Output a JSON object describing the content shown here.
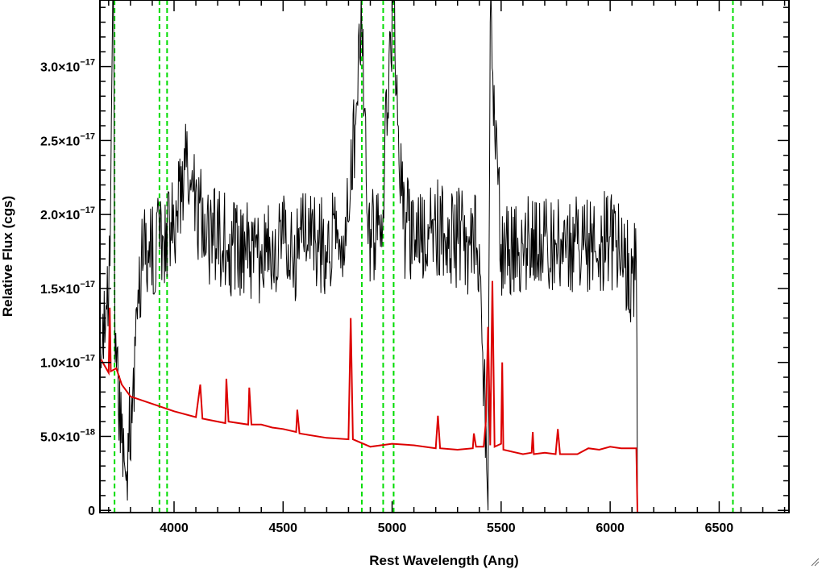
{
  "chart_data": {
    "type": "line",
    "title": "",
    "xlabel": "Rest Wavelength (Ang)",
    "ylabel": "Relative Flux (cgs)",
    "xlim": [
      3660,
      6820
    ],
    "ylim": [
      -1.5e-19,
      3.45e-17
    ],
    "x_ticks": [
      {
        "value": 4000,
        "label": "4000"
      },
      {
        "value": 4500,
        "label": "4500"
      },
      {
        "value": 5000,
        "label": "5000"
      },
      {
        "value": 5500,
        "label": "5500"
      },
      {
        "value": 6000,
        "label": "6000"
      },
      {
        "value": 6500,
        "label": "6500"
      }
    ],
    "y_ticks": [
      {
        "value": 0,
        "mantissa": "0",
        "exponent": ""
      },
      {
        "value": 5e-18,
        "mantissa": "5.0×10",
        "exponent": "−18"
      },
      {
        "value": 1e-17,
        "mantissa": "1.0×10",
        "exponent": "−17"
      },
      {
        "value": 1.5e-17,
        "mantissa": "1.5×10",
        "exponent": "−17"
      },
      {
        "value": 2e-17,
        "mantissa": "2.0×10",
        "exponent": "−17"
      },
      {
        "value": 2.5e-17,
        "mantissa": "2.5×10",
        "exponent": "−17"
      },
      {
        "value": 3e-17,
        "mantissa": "3.0×10",
        "exponent": "−17"
      }
    ],
    "grid": false,
    "legend": "none",
    "vertical_markers": {
      "color": "#00dd00",
      "style": "dashed",
      "x": [
        3727,
        3933,
        3968,
        4861,
        4959,
        5007,
        6563
      ]
    },
    "series": [
      {
        "color": "#000000",
        "points": [
          [
            3665,
            9.6e-18
          ],
          [
            3700,
            1.4e-17
          ],
          [
            3722,
            3.45e-17
          ],
          [
            3730,
            1e-17
          ],
          [
            3780,
            2e-18
          ],
          [
            3850,
            1.7e-17
          ],
          [
            3950,
            1.85e-17
          ],
          [
            4000,
            1.9e-17
          ],
          [
            4050,
            2.3e-17
          ],
          [
            4150,
            1.85e-17
          ],
          [
            4250,
            1.8e-17
          ],
          [
            4300,
            1.7e-17
          ],
          [
            4350,
            1.75e-17
          ],
          [
            4400,
            1.6e-17
          ],
          [
            4450,
            1.8e-17
          ],
          [
            4500,
            1.8e-17
          ],
          [
            4550,
            1.7e-17
          ],
          [
            4600,
            1.9e-17
          ],
          [
            4650,
            1.8e-17
          ],
          [
            4700,
            1.75e-17
          ],
          [
            4750,
            1.9e-17
          ],
          [
            4800,
            1.95e-17
          ],
          [
            4830,
            2.6e-17
          ],
          [
            4861,
            3.25e-17
          ],
          [
            4890,
            1.8e-17
          ],
          [
            4950,
            2e-17
          ],
          [
            5007,
            3.45e-17
          ],
          [
            5050,
            1.9e-17
          ],
          [
            5100,
            1.9e-17
          ],
          [
            5150,
            1.85e-17
          ],
          [
            5200,
            1.9e-17
          ],
          [
            5250,
            1.85e-17
          ],
          [
            5300,
            1.85e-17
          ],
          [
            5350,
            1.8e-17
          ],
          [
            5400,
            1.8e-17
          ],
          [
            5440,
            0
          ],
          [
            5450,
            3.3e-17
          ],
          [
            5500,
            1.8e-17
          ],
          [
            5550,
            1.8e-17
          ],
          [
            5600,
            1.8e-17
          ],
          [
            5650,
            1.9e-17
          ],
          [
            5700,
            1.85e-17
          ],
          [
            5750,
            1.8e-17
          ],
          [
            5800,
            1.85e-17
          ],
          [
            5850,
            1.8e-17
          ],
          [
            5900,
            1.75e-17
          ],
          [
            5950,
            1.8e-17
          ],
          [
            6000,
            1.85e-17
          ],
          [
            6050,
            1.7e-17
          ],
          [
            6100,
            1.6e-17
          ],
          [
            6120,
            1.65e-17
          ],
          [
            6125,
            0
          ]
        ]
      },
      {
        "color": "#dd0000",
        "points": [
          [
            3665,
            1.02e-17
          ],
          [
            3700,
            9.3e-18
          ],
          [
            3705,
            1.37e-17
          ],
          [
            3710,
            9.4e-18
          ],
          [
            3735,
            9.6e-18
          ],
          [
            3760,
            8.5e-18
          ],
          [
            3800,
            7.7e-18
          ],
          [
            3900,
            7.2e-18
          ],
          [
            4000,
            6.7e-18
          ],
          [
            4100,
            6.3e-18
          ],
          [
            4120,
            8.5e-18
          ],
          [
            4130,
            6.2e-18
          ],
          [
            4235,
            5.9e-18
          ],
          [
            4240,
            8.9e-18
          ],
          [
            4250,
            6e-18
          ],
          [
            4340,
            5.8e-18
          ],
          [
            4345,
            8.3e-18
          ],
          [
            4355,
            5.8e-18
          ],
          [
            4400,
            5.8e-18
          ],
          [
            4450,
            5.6e-18
          ],
          [
            4500,
            5.5e-18
          ],
          [
            4560,
            5.3e-18
          ],
          [
            4565,
            6.8e-18
          ],
          [
            4575,
            5.2e-18
          ],
          [
            4700,
            4.9e-18
          ],
          [
            4800,
            4.8e-18
          ],
          [
            4810,
            1.3e-17
          ],
          [
            4820,
            4.8e-18
          ],
          [
            4900,
            4.3e-18
          ],
          [
            5000,
            4.5e-18
          ],
          [
            5100,
            4.4e-18
          ],
          [
            5200,
            4.2e-18
          ],
          [
            5210,
            6.4e-18
          ],
          [
            5220,
            4.2e-18
          ],
          [
            5300,
            4.1e-18
          ],
          [
            5370,
            4.2e-18
          ],
          [
            5375,
            5.2e-18
          ],
          [
            5385,
            4.3e-18
          ],
          [
            5420,
            4.3e-18
          ],
          [
            5430,
            6e-18
          ],
          [
            5440,
            1.24e-17
          ],
          [
            5450,
            4.4e-18
          ],
          [
            5460,
            1.55e-17
          ],
          [
            5470,
            4.3e-18
          ],
          [
            5500,
            4.5e-18
          ],
          [
            5505,
            1e-17
          ],
          [
            5510,
            4.1e-18
          ],
          [
            5600,
            3.8e-18
          ],
          [
            5640,
            3.9e-18
          ],
          [
            5645,
            5.3e-18
          ],
          [
            5650,
            3.8e-18
          ],
          [
            5700,
            3.9e-18
          ],
          [
            5750,
            3.8e-18
          ],
          [
            5760,
            5.5e-18
          ],
          [
            5770,
            3.8e-18
          ],
          [
            5850,
            3.8e-18
          ],
          [
            5900,
            4.2e-18
          ],
          [
            5950,
            4.1e-18
          ],
          [
            6000,
            4.3e-18
          ],
          [
            6050,
            4.2e-18
          ],
          [
            6120,
            4.2e-18
          ],
          [
            6125,
            -1.5e-19
          ],
          [
            6820,
            -1.5e-19
          ]
        ]
      }
    ]
  }
}
